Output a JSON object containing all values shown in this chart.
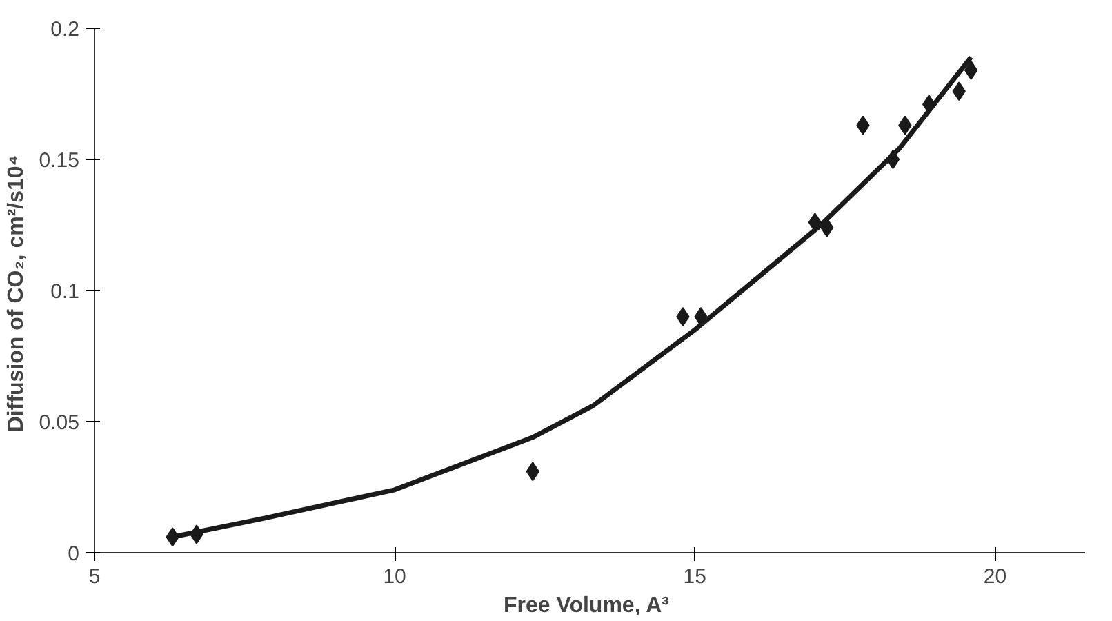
{
  "chart_data": {
    "type": "scatter",
    "xlabel": "Free Volume,  A³",
    "ylabel": "Diffusion of CO₂,  cm²/s10⁴",
    "xlim": [
      5,
      21.5
    ],
    "ylim": [
      0,
      0.2
    ],
    "xticks": [
      5,
      10,
      15,
      20
    ],
    "yticks": [
      0,
      {
        "value": 0.05,
        "label": "0.05"
      },
      {
        "value": 0.1,
        "label": "0.1"
      },
      {
        "value": 0.15,
        "label": "0.15"
      },
      {
        "value": 0.2,
        "label": "0.2"
      }
    ],
    "grid": false,
    "series": [
      {
        "marker": "diamond",
        "color": "#1a1a1a",
        "x": [
          6.3,
          6.7,
          12.3,
          14.8,
          15.1,
          17.0,
          17.2,
          17.8,
          18.3,
          18.5,
          18.9,
          19.4,
          19.6
        ],
        "values": [
          0.006,
          0.007,
          0.031,
          0.09,
          0.09,
          0.126,
          0.124,
          0.163,
          0.15,
          0.163,
          0.171,
          0.176,
          0.184
        ]
      },
      {
        "type": "line",
        "line_style": "solid",
        "color": "#1a1a1a",
        "x": [
          6.3,
          7.8,
          10,
          12.3,
          13.3,
          15,
          16,
          17.1,
          18.4,
          19.6
        ],
        "values": [
          0.006,
          0.013,
          0.024,
          0.044,
          0.056,
          0.085,
          0.104,
          0.125,
          0.154,
          0.189
        ]
      }
    ]
  }
}
